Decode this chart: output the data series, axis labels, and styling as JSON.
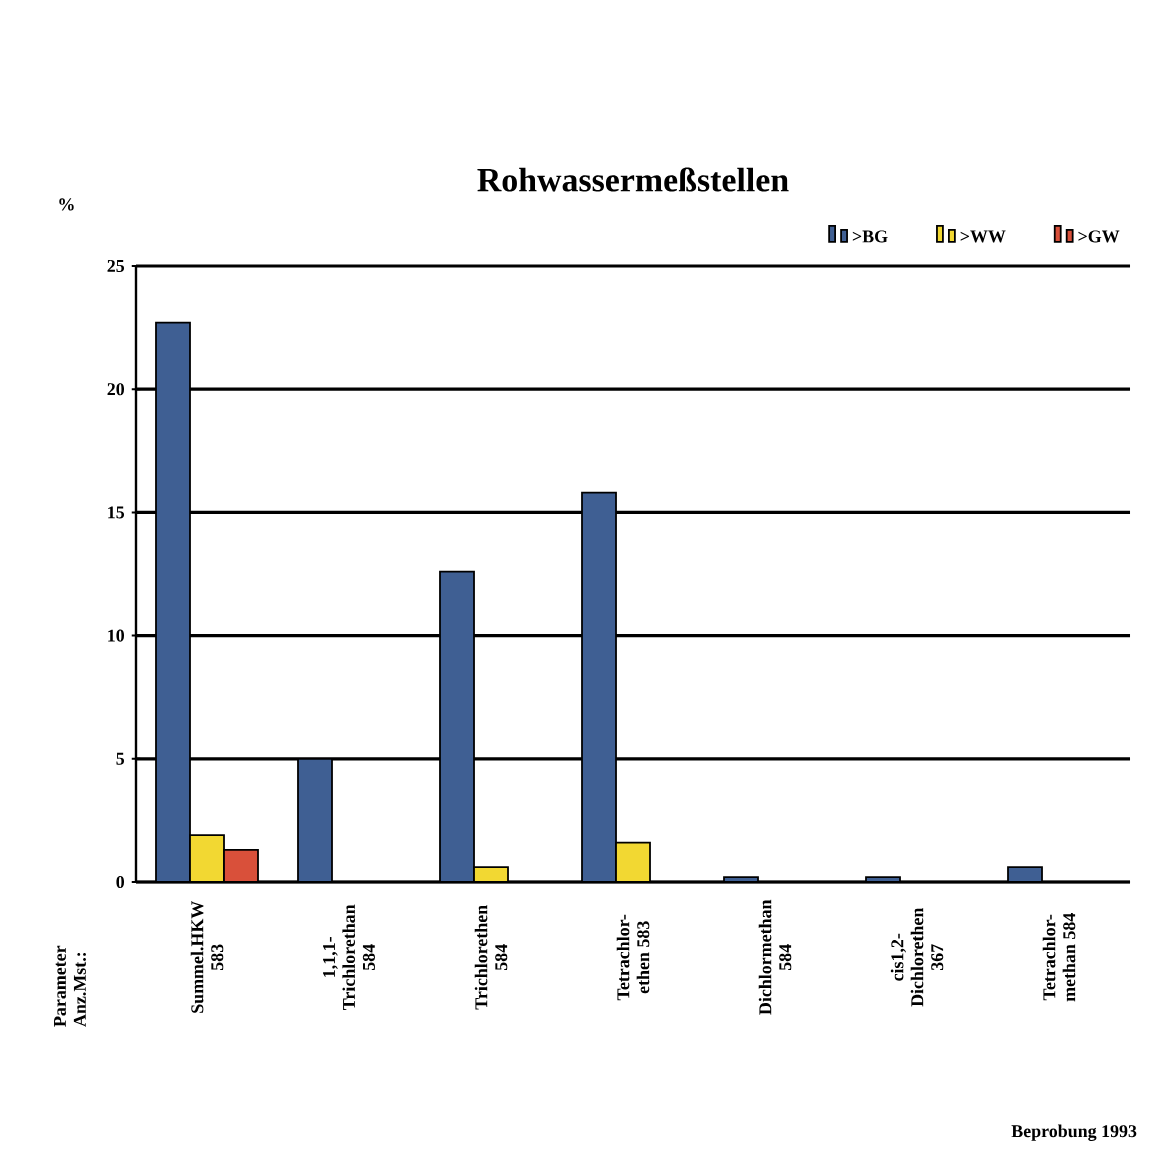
{
  "chart_data": {
    "type": "bar",
    "title": "Rohwassermeßstellen",
    "ylabel": "%",
    "categories": [
      "Summel.HKW 583",
      "1,1,1- Trichlorethan 584",
      "Trichlorethen 584",
      "Tetrachlor- ethen 583",
      "Dichlormethan 584",
      "cis1,2- Dichlorethen 367",
      "Tetrachlor- methan 584"
    ],
    "series": [
      {
        "name": ">BG",
        "color": "#3f5f93",
        "values": [
          22.7,
          5.0,
          12.6,
          15.8,
          0.2,
          0.2,
          0.6
        ]
      },
      {
        "name": ">WW",
        "color": "#f2d832",
        "values": [
          1.9,
          null,
          0.6,
          1.6,
          null,
          null,
          null
        ]
      },
      {
        "name": ">GW",
        "color": "#d9503a",
        "values": [
          1.3,
          null,
          null,
          null,
          null,
          null,
          null
        ]
      }
    ],
    "ylim": [
      0,
      25
    ],
    "yticks": [
      0,
      5,
      10,
      15,
      20,
      25
    ],
    "grid": "y",
    "legend": "top right",
    "annotations": [
      "Parameter Anz.Mst.:",
      "Beprobung 1993"
    ]
  }
}
